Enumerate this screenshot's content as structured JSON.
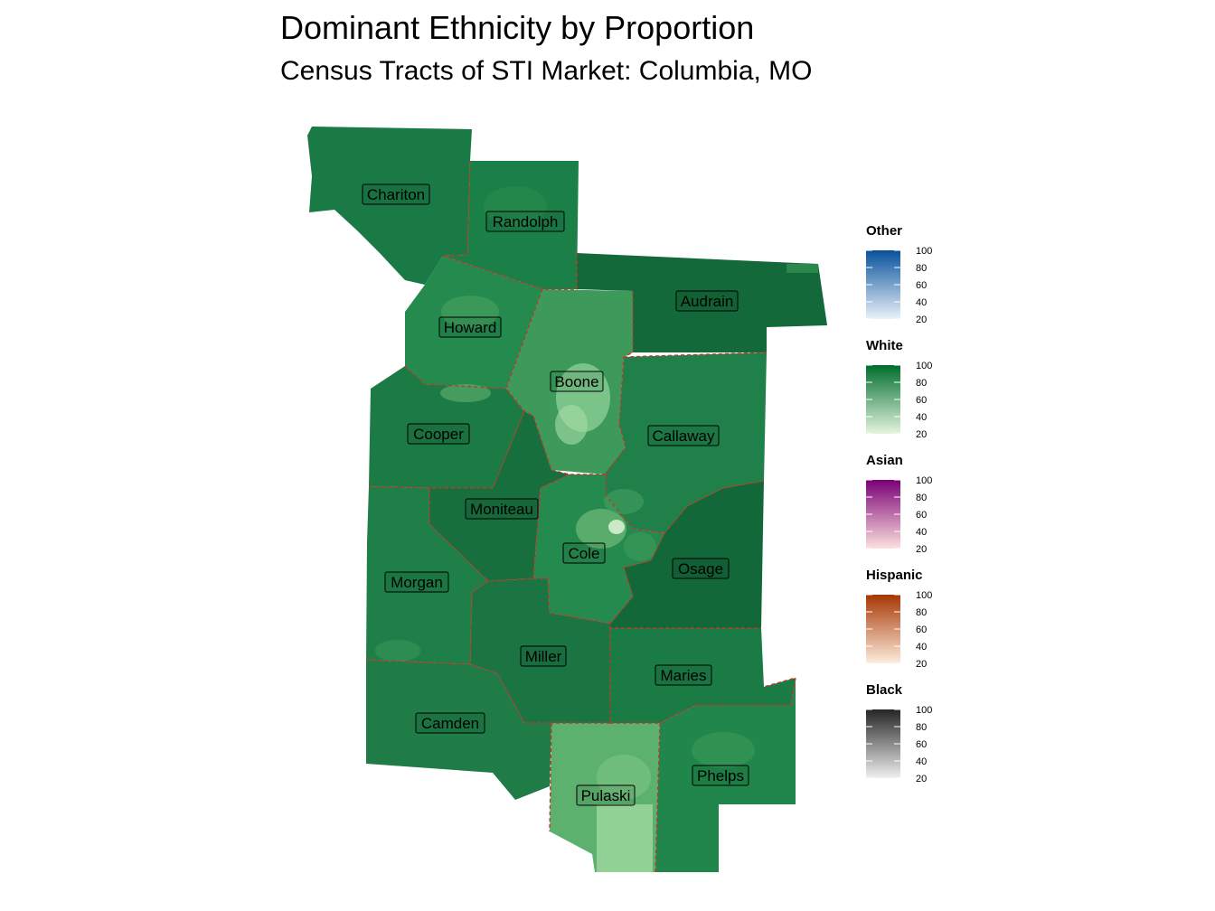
{
  "title": "Dominant Ethnicity by Proportion",
  "subtitle": "Census Tracts of STI Market: Columbia, MO",
  "map": {
    "counties": [
      {
        "name": "Chariton",
        "color": "#1a7a45"
      },
      {
        "name": "Randolph",
        "color": "#1b7f48"
      },
      {
        "name": "Howard",
        "color": "#248a4d"
      },
      {
        "name": "Audrain",
        "color": "#13693a"
      },
      {
        "name": "Boone",
        "color": "#3d9a5a"
      },
      {
        "name": "Cooper",
        "color": "#1c7a44"
      },
      {
        "name": "Callaway",
        "color": "#20804a"
      },
      {
        "name": "Moniteau",
        "color": "#186f3e"
      },
      {
        "name": "Cole",
        "color": "#258a4e"
      },
      {
        "name": "Osage",
        "color": "#13683a"
      },
      {
        "name": "Morgan",
        "color": "#1f7f48"
      },
      {
        "name": "Miller",
        "color": "#1a7543"
      },
      {
        "name": "Maries",
        "color": "#1b7b45"
      },
      {
        "name": "Camden",
        "color": "#1f7c47"
      },
      {
        "name": "Pulaski",
        "color": "#5cb16e"
      },
      {
        "name": "Phelps",
        "color": "#21864b"
      }
    ]
  },
  "legend": [
    {
      "title": "Other",
      "color_light": "#eaf2fa",
      "color_dark": "#08519c",
      "ticks": [
        "100",
        "80",
        "60",
        "40",
        "20"
      ]
    },
    {
      "title": "White",
      "color_light": "#e5f5e0",
      "color_dark": "#006d2c",
      "ticks": [
        "100",
        "80",
        "60",
        "40",
        "20"
      ]
    },
    {
      "title": "Asian",
      "color_light": "#fde0dd",
      "color_dark": "#7a0177",
      "ticks": [
        "100",
        "80",
        "60",
        "40",
        "20"
      ]
    },
    {
      "title": "Hispanic",
      "color_light": "#feedde",
      "color_dark": "#a63603",
      "ticks": [
        "100",
        "80",
        "60",
        "40",
        "20"
      ]
    },
    {
      "title": "Black",
      "color_light": "#f0f0f0",
      "color_dark": "#252525",
      "ticks": [
        "100",
        "80",
        "60",
        "40",
        "20"
      ]
    }
  ]
}
